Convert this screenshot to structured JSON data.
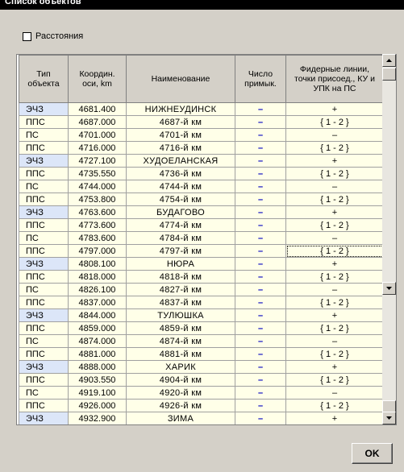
{
  "window": {
    "title": "Список объектов",
    "checkbox_label": "Расстояния",
    "ok_button": "OK"
  },
  "table": {
    "headers": [
      "Тип объекта",
      "Координ. оси, km",
      "Наименование",
      "Число примык.",
      "Фидерные линии, точки присоед., КУ и УПК на ПС"
    ],
    "rows": [
      [
        "ЭЧЗ",
        "4681.400",
        "НИЖНЕУДИНСК",
        "–",
        "+"
      ],
      [
        "ППС",
        "4687.000",
        "4687-й км",
        "–",
        "{ 1 - 2 }"
      ],
      [
        "ПС",
        "4701.000",
        "4701-й км",
        "–",
        "–"
      ],
      [
        "ППС",
        "4716.000",
        "4716-й км",
        "–",
        "{ 1 - 2 }"
      ],
      [
        "ЭЧЗ",
        "4727.100",
        "ХУДОЕЛАНСКАЯ",
        "–",
        "+"
      ],
      [
        "ППС",
        "4735.550",
        "4736-й км",
        "–",
        "{ 1 - 2 }"
      ],
      [
        "ПС",
        "4744.000",
        "4744-й км",
        "–",
        "–"
      ],
      [
        "ППС",
        "4753.800",
        "4754-й км",
        "–",
        "{ 1 - 2 }"
      ],
      [
        "ЭЧЗ",
        "4763.600",
        "БУДАГОВО",
        "–",
        "+"
      ],
      [
        "ППС",
        "4773.600",
        "4774-й км",
        "–",
        "{ 1 - 2 }"
      ],
      [
        "ПС",
        "4783.600",
        "4784-й км",
        "–",
        "–"
      ],
      [
        "ППС",
        "4797.000",
        "4797-й км",
        "–",
        "{ 1 - 2 }"
      ],
      [
        "ЭЧЗ",
        "4808.100",
        "НЮРА",
        "–",
        "+"
      ],
      [
        "ППС",
        "4818.000",
        "4818-й км",
        "–",
        "{ 1 - 2 }"
      ],
      [
        "ПС",
        "4826.100",
        "4827-й км",
        "–",
        "–"
      ],
      [
        "ППС",
        "4837.000",
        "4837-й км",
        "–",
        "{ 1 - 2 }"
      ],
      [
        "ЭЧЗ",
        "4844.000",
        "ТУЛЮШКА",
        "–",
        "+"
      ],
      [
        "ППС",
        "4859.000",
        "4859-й км",
        "–",
        "{ 1 - 2 }"
      ],
      [
        "ПС",
        "4874.000",
        "4874-й км",
        "–",
        "–"
      ],
      [
        "ППС",
        "4881.000",
        "4881-й км",
        "–",
        "{ 1 - 2 }"
      ],
      [
        "ЭЧЗ",
        "4888.000",
        "ХАРИК",
        "–",
        "+"
      ],
      [
        "ППС",
        "4903.550",
        "4904-й км",
        "–",
        "{ 1 - 2 }"
      ],
      [
        "ПС",
        "4919.100",
        "4920-й км",
        "–",
        "–"
      ],
      [
        "ППС",
        "4926.000",
        "4926-й км",
        "–",
        "{ 1 - 2 }"
      ],
      [
        "ЭЧЗ",
        "4932.900",
        "ЗИМА",
        "–",
        "+"
      ]
    ]
  }
}
